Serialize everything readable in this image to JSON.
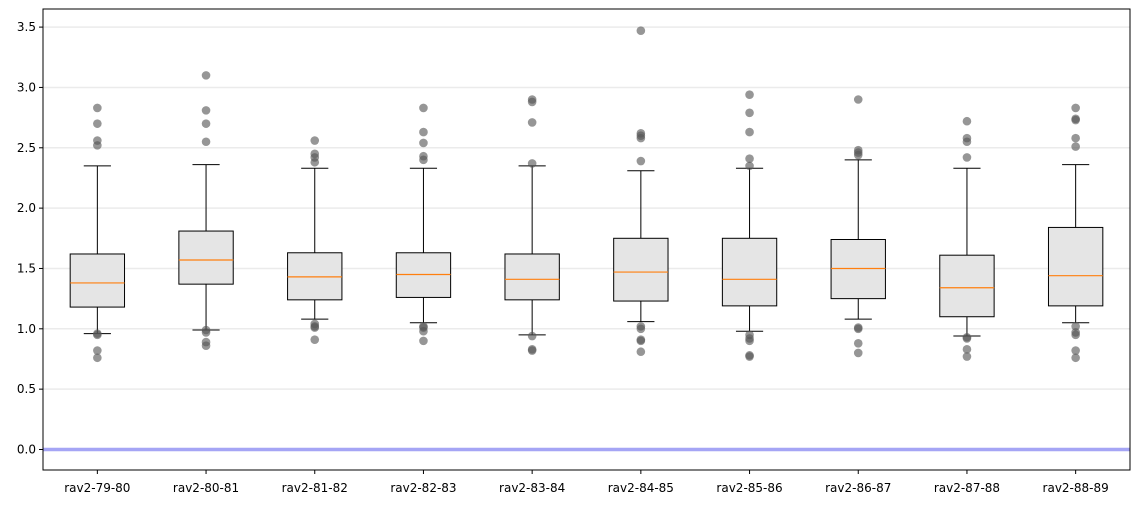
{
  "chart_data": {
    "type": "box",
    "title": "",
    "xlabel": "",
    "ylabel": "",
    "ylim": [
      -0.17,
      3.65
    ],
    "yticks": [
      0.0,
      0.5,
      1.0,
      1.5,
      2.0,
      2.5,
      3.0,
      3.5
    ],
    "ytick_labels": [
      "0.0",
      "0.5",
      "1.0",
      "1.5",
      "2.0",
      "2.5",
      "3.0",
      "3.5"
    ],
    "grid": "horizontal",
    "reference_line": {
      "y": 0.0,
      "color": "#a5a5f5"
    },
    "colors": {
      "box_fill": "#e5e5e5",
      "box_edge": "#000000",
      "median": "#ff7f0e",
      "outlier": "#555555",
      "grid": "#ebebeb"
    },
    "categories": [
      "rav2-79-80",
      "rav2-80-81",
      "rav2-81-82",
      "rav2-82-83",
      "rav2-83-84",
      "rav2-84-85",
      "rav2-85-86",
      "rav2-86-87",
      "rav2-87-88",
      "rav2-88-89"
    ],
    "boxes": [
      {
        "whislo": 0.96,
        "q1": 1.18,
        "med": 1.38,
        "q3": 1.62,
        "whishi": 2.35,
        "fliers": [
          0.76,
          0.82,
          0.95,
          0.96,
          2.52,
          2.56,
          2.7,
          2.83
        ]
      },
      {
        "whislo": 0.99,
        "q1": 1.37,
        "med": 1.57,
        "q3": 1.81,
        "whishi": 2.36,
        "fliers": [
          0.86,
          0.89,
          0.97,
          0.99,
          2.55,
          2.7,
          2.81,
          3.1
        ]
      },
      {
        "whislo": 1.08,
        "q1": 1.24,
        "med": 1.43,
        "q3": 1.63,
        "whishi": 2.33,
        "fliers": [
          0.91,
          1.01,
          1.02,
          1.04,
          2.38,
          2.42,
          2.45,
          2.56
        ]
      },
      {
        "whislo": 1.05,
        "q1": 1.26,
        "med": 1.45,
        "q3": 1.63,
        "whishi": 2.33,
        "fliers": [
          0.9,
          0.98,
          1.01,
          1.02,
          2.4,
          2.43,
          2.54,
          2.63,
          2.83
        ]
      },
      {
        "whislo": 0.95,
        "q1": 1.24,
        "med": 1.41,
        "q3": 1.62,
        "whishi": 2.35,
        "fliers": [
          0.82,
          0.83,
          0.94,
          2.37,
          2.71,
          2.88,
          2.9
        ]
      },
      {
        "whislo": 1.06,
        "q1": 1.23,
        "med": 1.47,
        "q3": 1.75,
        "whishi": 2.31,
        "fliers": [
          0.81,
          0.9,
          0.91,
          1.0,
          1.02,
          2.39,
          2.58,
          2.6,
          2.62,
          3.47
        ]
      },
      {
        "whislo": 0.98,
        "q1": 1.19,
        "med": 1.41,
        "q3": 1.75,
        "whishi": 2.33,
        "fliers": [
          0.77,
          0.78,
          0.9,
          0.92,
          0.95,
          2.35,
          2.41,
          2.63,
          2.79,
          2.94
        ]
      },
      {
        "whislo": 1.08,
        "q1": 1.25,
        "med": 1.5,
        "q3": 1.74,
        "whishi": 2.4,
        "fliers": [
          0.8,
          0.88,
          1.0,
          1.01,
          2.44,
          2.46,
          2.48,
          2.9
        ]
      },
      {
        "whislo": 0.94,
        "q1": 1.1,
        "med": 1.34,
        "q3": 1.61,
        "whishi": 2.33,
        "fliers": [
          0.77,
          0.83,
          0.92,
          0.93,
          2.42,
          2.55,
          2.58,
          2.72
        ]
      },
      {
        "whislo": 1.05,
        "q1": 1.19,
        "med": 1.44,
        "q3": 1.84,
        "whishi": 2.36,
        "fliers": [
          0.76,
          0.82,
          0.95,
          0.97,
          1.02,
          2.51,
          2.58,
          2.73,
          2.74,
          2.83
        ]
      }
    ]
  }
}
